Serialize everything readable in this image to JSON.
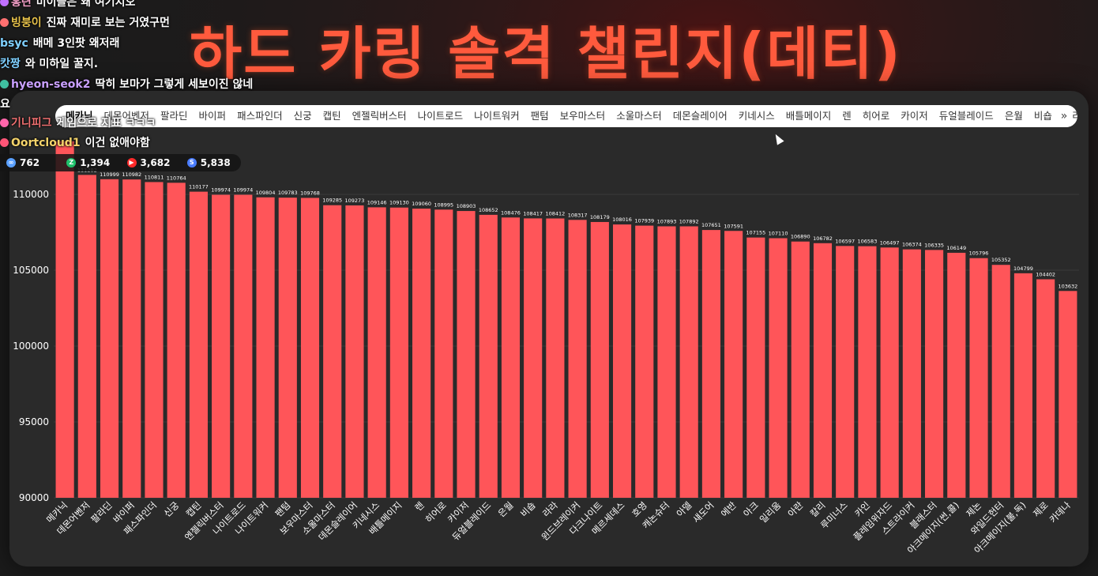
{
  "title": "하드 카링 솔격 챌린지(데티)",
  "tabs": [
    "메카닉",
    "데몬어벤저",
    "팔라딘",
    "바이퍼",
    "패스파인더",
    "신궁",
    "캡틴",
    "엔젤릭버스터",
    "나이트로드",
    "나이트워커",
    "팬텀",
    "보우마스터",
    "소울마스터",
    "데몬슬레이어",
    "키네시스",
    "배틀메이지",
    "렌",
    "히어로",
    "카이저",
    "듀얼블레이드",
    "은월",
    "비숍",
    "라라"
  ],
  "tabs_more": "»",
  "chat": [
    {
      "user": "홍련",
      "text": "미이들은 왜 여기지오",
      "color": "#f4a0c8",
      "badge": "#c070ff"
    },
    {
      "user": "빙붕이",
      "text": "진짜 재미로 보는 거였구먼",
      "color": "#e6c14a",
      "badge": "#ff7070"
    },
    {
      "user": "bsyc",
      "text": "배메 3인팟 왜저래",
      "color": "#7fd0ff",
      "badge": ""
    },
    {
      "user": "캇짱",
      "text": "와 미하일 꿀지.",
      "color": "#7fd0ff",
      "badge": ""
    },
    {
      "user": "hyeon-seok2",
      "text": "딱히 보마가 그렇게 세보이진 않네",
      "color": "#c9a0ff",
      "badge": "#3fbfa0"
    },
    {
      "user": "",
      "text": "요",
      "color": "#ffffff",
      "badge": ""
    },
    {
      "user": "기니피그",
      "text": "게임으로 지표 ㅋㅋㅋ",
      "color": "#f07070",
      "badge": "#ff66aa"
    },
    {
      "user": "Oortcloud1",
      "text": "이건 없애야함",
      "color": "#f4d36a",
      "badge": "#ff5577"
    }
  ],
  "stats": [
    {
      "icon": "∞",
      "value": "762",
      "color": "#5aa0ff"
    },
    {
      "icon": "Z",
      "value": "1,394",
      "color": "#1fbf6a"
    },
    {
      "icon": "▶",
      "value": "3,682",
      "color": "#ff2a2a"
    },
    {
      "icon": "S",
      "value": "5,838",
      "color": "#4a7dff"
    }
  ],
  "colors": {
    "bar": "#ff5559",
    "panel": "#2a2a2a",
    "title": "#ff5a3d",
    "text": "#ffffff"
  },
  "chart_data": {
    "type": "bar",
    "categories": [
      "메카닉",
      "데몬어벤저",
      "팔라딘",
      "바이퍼",
      "패스파인더",
      "신궁",
      "캡틴",
      "엔젤릭버스터",
      "나이트로드",
      "나이트워커",
      "팬텀",
      "보우마스터",
      "소울마스터",
      "데몬슬레이어",
      "키네시스",
      "배틀메이지",
      "렌",
      "히어로",
      "카이저",
      "듀얼블레이드",
      "은월",
      "비숍",
      "라라",
      "윈드브레이커",
      "다크나이트",
      "메르세데스",
      "호영",
      "캐논슈터",
      "아델",
      "섀도어",
      "에반",
      "아크",
      "일리움",
      "아란",
      "칼리",
      "루미너스",
      "카인",
      "플레임위자드",
      "스트라이커",
      "블래스터",
      "아크메이지(썬,콜)",
      "제논",
      "와일드헌터",
      "아크메이지(불,독)",
      "제로",
      "카데나"
    ],
    "values": [
      113500,
      111282,
      110999,
      110982,
      110811,
      110764,
      110177,
      109974,
      109974,
      109804,
      109783,
      109768,
      109285,
      109273,
      109146,
      109130,
      109060,
      108995,
      108903,
      108652,
      108476,
      108417,
      108412,
      108317,
      108179,
      108016,
      107939,
      107893,
      107892,
      107651,
      107591,
      107155,
      107110,
      106890,
      106782,
      106597,
      106583,
      106497,
      106374,
      106335,
      106149,
      105796,
      105352,
      104799,
      104402,
      103632
    ],
    "value_labels": [
      "",
      "111282",
      "110999",
      "110982",
      "110811",
      "110764",
      "110177",
      "109974",
      "109974",
      "109804",
      "109783",
      "109768",
      "109285",
      "109273",
      "109146",
      "109130",
      "109060",
      "108995",
      "108903",
      "108652",
      "108476",
      "108417",
      "108412",
      "108317",
      "108179",
      "108016",
      "107939",
      "107893",
      "107892",
      "107651",
      "107591",
      "107155",
      "107110",
      "106890",
      "106782",
      "106597",
      "106583",
      "106497",
      "106374",
      "106335",
      "106149",
      "105796",
      "105352",
      "104799",
      "104402",
      "103632"
    ],
    "y_ticks": [
      "90000",
      "95000",
      "100000",
      "105000",
      "110000"
    ],
    "y_tick_values": [
      90000,
      95000,
      100000,
      105000,
      110000
    ],
    "ylim": [
      90000,
      112500
    ],
    "grid": true
  }
}
